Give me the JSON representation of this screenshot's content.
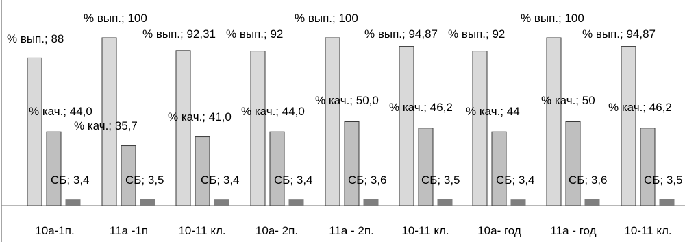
{
  "chart_data": {
    "type": "bar",
    "title": "",
    "xlabel": "",
    "ylabel": "",
    "ylim": [
      0,
      110
    ],
    "grid": false,
    "legend": "none",
    "categories": [
      "10а-1п.",
      "11а -1п",
      "10-11 кл.",
      "10а- 2п.",
      "11а - 2п.",
      "10-11 кл.",
      "10а- год",
      "11а - год",
      "10-11 кл."
    ],
    "series": [
      {
        "name": "% вып.",
        "values": [
          88,
          100,
          92.31,
          92,
          100,
          94.87,
          92,
          100,
          94.87
        ],
        "labels": [
          "% вып.; 88",
          "% вып.; 100",
          "% вып.; 92,31",
          "% вып.; 92",
          "% вып.; 100",
          "% вып.; 94,87",
          "% вып.; 92",
          "% вып.; 100",
          "% вып.; 94,87"
        ],
        "color": "#d9d9d9"
      },
      {
        "name": "% кач.",
        "values": [
          44.0,
          35.7,
          41.0,
          44.0,
          50.0,
          46.2,
          44,
          50,
          46.2
        ],
        "labels": [
          "% кач.; 44,0",
          "% кач.; 35,7",
          "% кач.; 41,0",
          "% кач.; 44,0",
          "% кач.; 50,0",
          "% кач.; 46,2",
          "% кач.; 44",
          "% кач.; 50",
          "% кач.; 46,2"
        ],
        "color": "#bfbfbf"
      },
      {
        "name": "СБ",
        "values": [
          3.4,
          3.5,
          3.4,
          3.4,
          3.6,
          3.5,
          3.4,
          3.6,
          3.5
        ],
        "labels": [
          "СБ; 3,4",
          "СБ; 3,5",
          "СБ; 3,4",
          "СБ; 3,4",
          "СБ; 3,6",
          "СБ; 3,5",
          "СБ; 3,4",
          "СБ; 3,6",
          "СБ; 3,5"
        ],
        "color": "#7f7f7f"
      }
    ]
  }
}
